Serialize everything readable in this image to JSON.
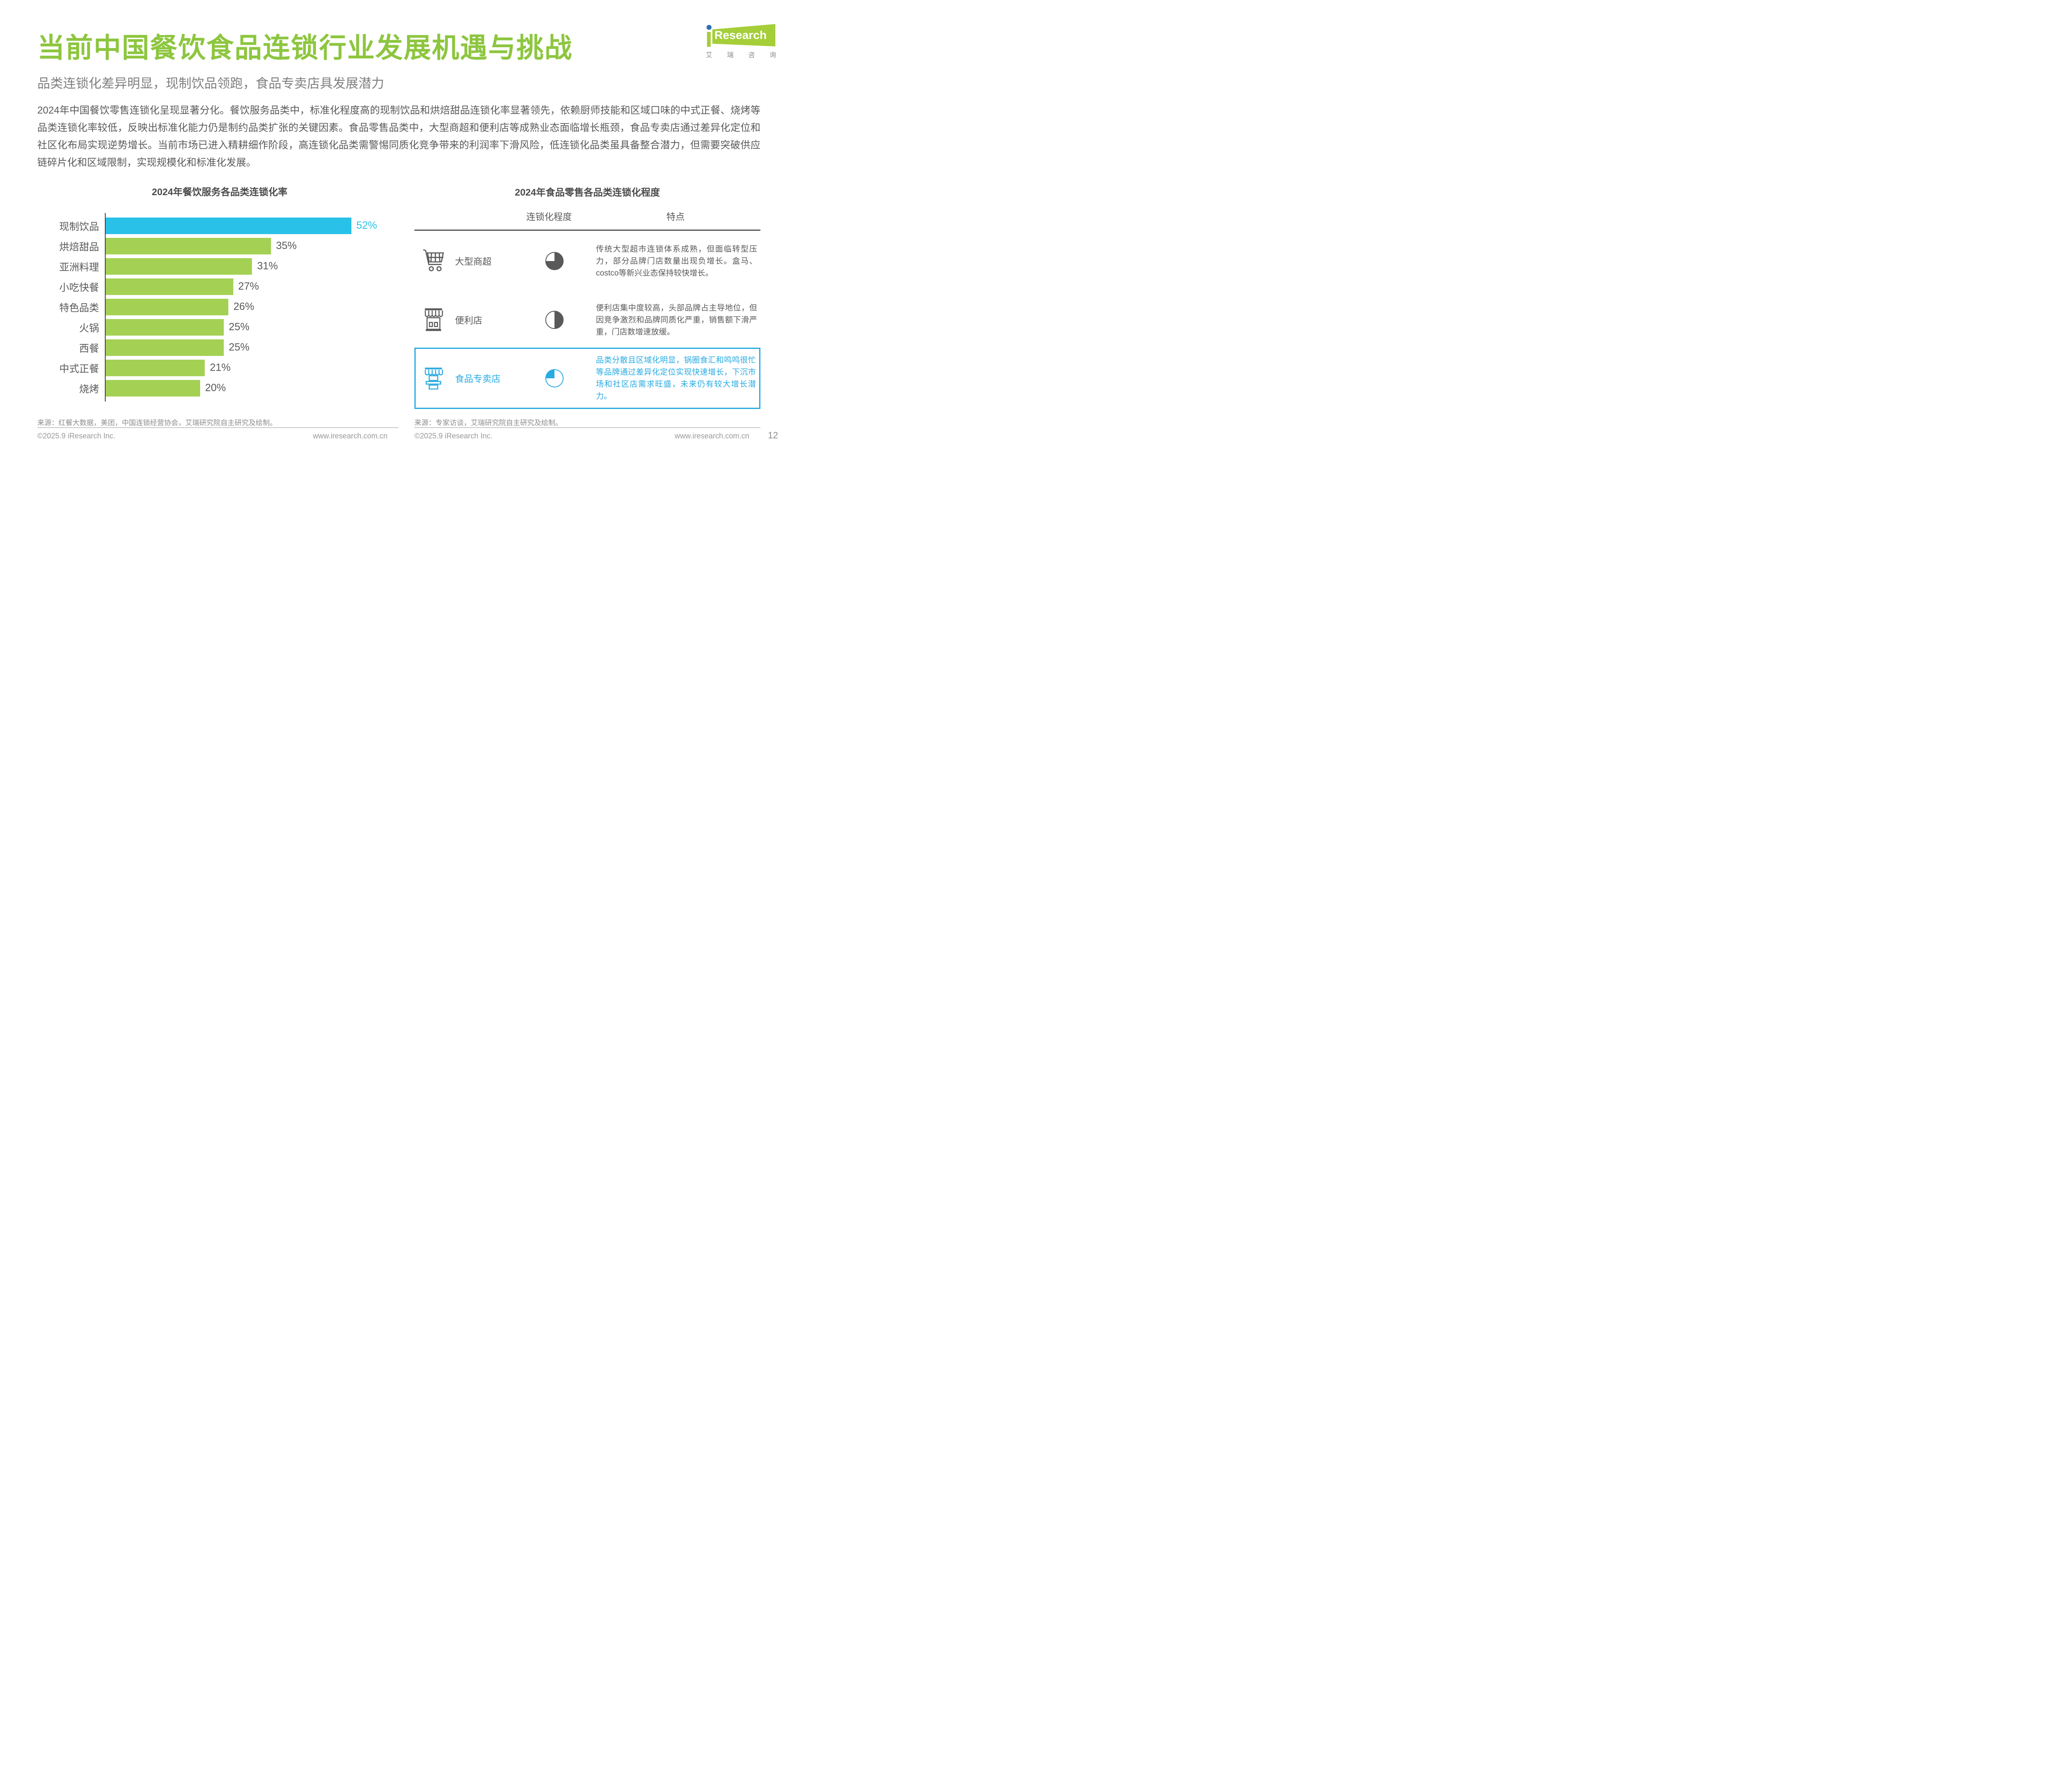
{
  "header": {
    "title": "当前中国餐饮食品连锁行业发展机遇与挑战",
    "subtitle": "品类连锁化差异明显，现制饮品领跑，食品专卖店具发展潜力",
    "paragraph": "2024年中国餐饮零售连锁化呈现显著分化。餐饮服务品类中，标准化程度高的现制饮品和烘焙甜品连锁化率显著领先，依赖厨师技能和区域口味的中式正餐、烧烤等品类连锁化率较低，反映出标准化能力仍是制约品类扩张的关键因素。食品零售品类中，大型商超和便利店等成熟业态面临增长瓶颈，食品专卖店通过差异化定位和社区化布局实现逆势增长。当前市场已进入精耕细作阶段，高连锁化品类需警惕同质化竞争带来的利润率下滑风险，低连锁化品类虽具备整合潜力，但需要突破供应链碎片化和区域限制，实现规模化和标准化发展。"
  },
  "logo": {
    "i": "i",
    "research": "Research",
    "cn_chars": [
      "艾",
      "瑞",
      "咨",
      "询"
    ]
  },
  "chart_data": [
    {
      "type": "bar",
      "orientation": "horizontal",
      "title": "2024年餐饮服务各品类连锁化率",
      "categories": [
        "现制饮品",
        "烘焙甜品",
        "亚洲料理",
        "小吃快餐",
        "特色品类",
        "火锅",
        "西餐",
        "中式正餐",
        "烧烤"
      ],
      "values": [
        52,
        35,
        31,
        27,
        26,
        25,
        25,
        21,
        20
      ],
      "unit": "%",
      "xlim": [
        0,
        60
      ],
      "grid": false,
      "highlight_index": 0,
      "highlight_color": "#29C1E7",
      "bar_color": "#A4D154",
      "value_label_color": "#595959"
    },
    {
      "type": "table",
      "title": "2024年食品零售各品类连锁化程度",
      "columns": [
        "连锁化程度",
        "特点"
      ],
      "rows": [
        {
          "label": "大型商超",
          "icon": "cart-icon",
          "chain_level": 0.75,
          "feature": "传统大型超市连锁体系成熟，但面临转型压力，部分品牌门店数量出现负增长。盒马、costco等新兴业态保持较快增长。",
          "highlighted": false
        },
        {
          "label": "便利店",
          "icon": "store-icon",
          "chain_level": 0.5,
          "feature": "便利店集中度较高，头部品牌占主导地位，但因竞争激烈和品牌同质化严重，销售额下滑严重，门店数增速放缓。",
          "highlighted": false
        },
        {
          "label": "食品专卖店",
          "icon": "stall-icon",
          "chain_level": 0.25,
          "feature": "品类分散且区域化明显，锅圈食汇和鸣鸣很忙等品牌通过差异化定位实现快速增长，下沉市场和社区店需求旺盛，未来仍有较大增长潜力。",
          "highlighted": true
        }
      ],
      "normal_color": "#595959",
      "highlight_color": "#29ABE2"
    }
  ],
  "sources": {
    "left": "来源：红餐大数据，美团，中国连锁经营协会，艾瑞研究院自主研究及绘制。",
    "right": "来源：专家访谈，艾瑞研究院自主研究及绘制。"
  },
  "footer": {
    "copyright": "©2025.9 iResearch Inc.",
    "website": "www.iresearch.com.cn",
    "page_number": "12"
  }
}
